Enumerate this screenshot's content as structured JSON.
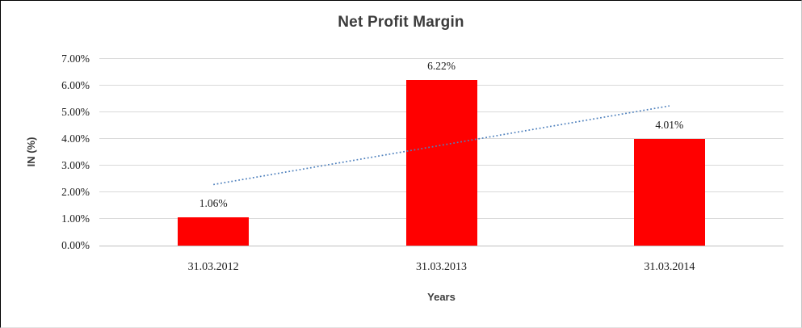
{
  "chart_data": {
    "type": "bar",
    "title": "Net Profit Margin",
    "xlabel": "Years",
    "ylabel": "IN (%)",
    "categories": [
      "31.03.2012",
      "31.03.2013",
      "31.03.2014"
    ],
    "values": [
      1.06,
      6.22,
      4.01
    ],
    "data_labels": [
      "1.06%",
      "6.22%",
      "4.01%"
    ],
    "ylim": [
      0,
      7
    ],
    "y_tick_labels_top_to_bottom": [
      "7.00%",
      "6.00%",
      "5.00%",
      "4.00%",
      "3.00%",
      "2.00%",
      "1.00%",
      "0.00%"
    ],
    "grid": true,
    "legend": false,
    "trendline": {
      "type": "linear",
      "style": "dotted",
      "spans_categories": [
        0,
        2
      ],
      "start_value_pct": 2.29,
      "end_value_pct": 5.24
    },
    "colors": {
      "bar": "#ff0000",
      "trendline": "#4f81bd",
      "gridline": "#d9d9d9",
      "zero_axis_line": "#bfbfbf",
      "title_text": "#3c3c3c",
      "axis_title_text": "#3c3c3c",
      "tick_text": "#1a1a1a"
    }
  }
}
